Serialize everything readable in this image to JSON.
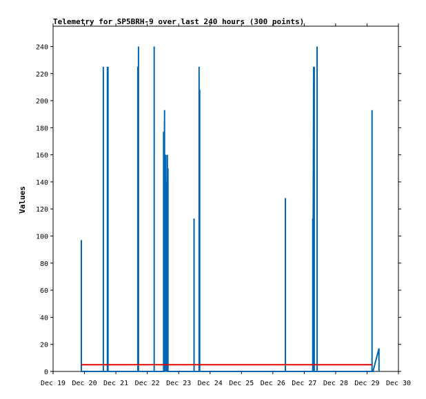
{
  "chart_data": {
    "type": "line",
    "title": "Telemetry for SP5BRH-9 over last 240 hours (300 points)",
    "xlabel": "",
    "ylabel": "Values",
    "xlim": [
      0,
      11
    ],
    "ylim": [
      0,
      255
    ],
    "x_ticks": [
      0,
      1,
      2,
      3,
      4,
      5,
      6,
      7,
      8,
      9,
      10,
      11
    ],
    "x_tick_labels": [
      "Dec 19",
      "Dec 20",
      "Dec 21",
      "Dec 22",
      "Dec 23",
      "Dec 24",
      "Dec 25",
      "Dec 26",
      "Dec 27",
      "Dec 28",
      "Dec 29",
      "Dec 30"
    ],
    "y_ticks": [
      0,
      20,
      40,
      60,
      80,
      100,
      120,
      140,
      160,
      180,
      200,
      220,
      240
    ],
    "grid": false,
    "legend": "none",
    "series": [
      {
        "color": "#0066b3",
        "x": [
          0.9,
          0.9,
          0.9,
          1.6,
          1.6,
          1.6,
          1.6,
          1.6,
          1.73,
          1.73,
          1.73,
          1.75,
          1.75,
          2.7,
          2.7,
          2.7,
          2.72,
          2.72,
          2.76,
          2.76,
          3.22,
          3.22,
          3.22,
          3.52,
          3.52,
          3.52,
          3.55,
          3.55,
          3.57,
          3.57,
          3.59,
          3.59,
          3.62,
          3.62,
          3.64,
          3.64,
          3.66,
          3.66,
          4.15,
          4.49,
          4.49,
          4.49,
          4.65,
          4.65,
          4.67,
          4.67,
          4.67,
          7.4,
          7.4,
          7.4,
          8.27,
          8.27,
          8.27,
          8.3,
          8.3,
          8.32,
          8.32,
          8.41,
          8.41,
          8.41,
          10.16,
          10.16,
          10.16,
          10.19,
          10.38,
          10.38
        ],
        "y": [
          0,
          97,
          0,
          0,
          113,
          0,
          225,
          0,
          0,
          225,
          0,
          225,
          0,
          0,
          225,
          0,
          240,
          0,
          0,
          0,
          0,
          240,
          0,
          0,
          177,
          0,
          193,
          0,
          100,
          0,
          160,
          0,
          140,
          0,
          160,
          0,
          150,
          0,
          0,
          0,
          113,
          0,
          0,
          225,
          0,
          208,
          0,
          0,
          128,
          0,
          0,
          113,
          0,
          225,
          0,
          225,
          0,
          0,
          240,
          0,
          0,
          193,
          0,
          0,
          17,
          0
        ]
      },
      {
        "color": "#e00000",
        "x": [
          0.9,
          10.16
        ],
        "y": [
          5,
          5
        ]
      }
    ]
  }
}
